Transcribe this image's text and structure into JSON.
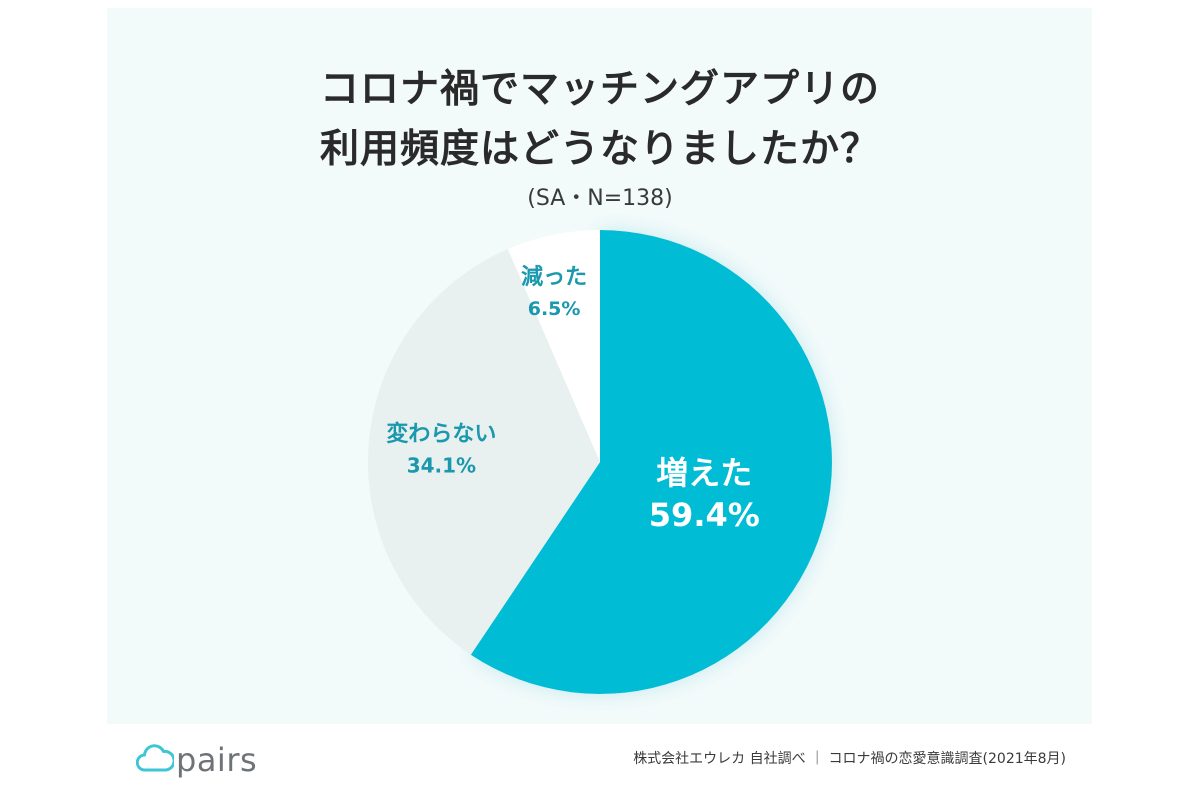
{
  "title_line1": "コロナ禍でマッチングアプリの",
  "title_line2": "利用頻度はどうなりましたか？",
  "subtitle": "(SA・N=138)",
  "logo_text": "pairs",
  "source_text": "株式会社エウレカ 自社調べ ｜ コロナ禍の恋愛意識調査(2021年8月)",
  "chart_data": {
    "type": "pie",
    "title": "コロナ禍でマッチングアプリの利用頻度はどうなりましたか？",
    "subtitle": "(SA・N=138)",
    "slices": [
      {
        "label": "増えた",
        "value": 59.4,
        "value_label": "59.4%",
        "color": "#00bcd4",
        "text_color": "#ffffff"
      },
      {
        "label": "変わらない",
        "value": 34.1,
        "value_label": "34.1%",
        "color": "#e9f0f0",
        "text_color": "#1a98ad"
      },
      {
        "label": "減った",
        "value": 6.5,
        "value_label": "6.5%",
        "color": "#ffffff",
        "text_color": "#1a98ad"
      }
    ],
    "start": "12 o'clock",
    "direction": "clockwise",
    "legend": "none"
  },
  "colors": {
    "panel_bg": "#f3fafa",
    "accent": "#00bcd4",
    "label_teal": "#1a98ad",
    "logo_gray": "#6e7378"
  }
}
